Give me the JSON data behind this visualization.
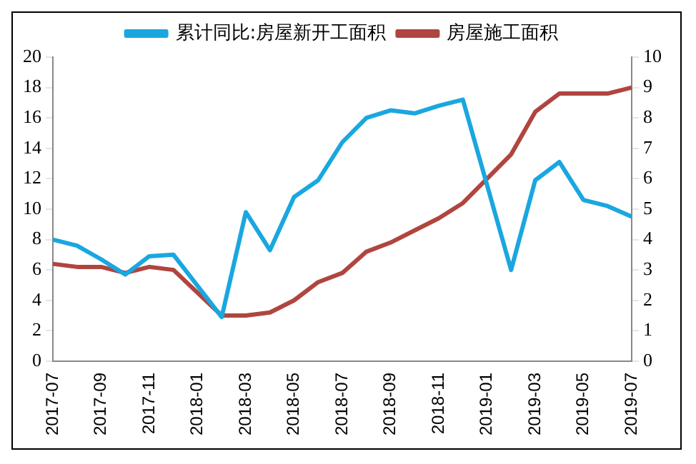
{
  "chart_data": {
    "type": "line",
    "categories": [
      "2017-07",
      null,
      "2017-09",
      null,
      "2017-11",
      null,
      "2018-01",
      null,
      "2018-03",
      null,
      "2018-05",
      null,
      "2018-07",
      null,
      "2018-09",
      null,
      "2018-11",
      null,
      "2019-01",
      null,
      "2019-03",
      null,
      "2019-05",
      null,
      "2019-07"
    ],
    "series": [
      {
        "name": "累计同比:房屋新开工面积",
        "color": "#1aa7e0",
        "values": [
          8.0,
          7.6,
          6.7,
          5.7,
          6.9,
          7.0,
          null,
          2.9,
          9.8,
          7.3,
          10.8,
          11.9,
          14.4,
          16.0,
          16.5,
          16.3,
          16.8,
          17.2,
          null,
          6.0,
          11.9,
          13.1,
          10.6,
          10.2,
          9.5
        ]
      },
      {
        "name": "房屋施工面积",
        "color": "#b0453f",
        "axis": "y2",
        "values": [
          3.2,
          3.1,
          3.1,
          2.9,
          3.1,
          3.0,
          null,
          1.5,
          1.5,
          1.6,
          2.0,
          2.6,
          2.9,
          3.6,
          3.9,
          4.3,
          4.7,
          5.2,
          null,
          6.8,
          8.2,
          8.8,
          8.8,
          8.8,
          9.0
        ]
      }
    ],
    "ylim": [
      0,
      20
    ],
    "yticks": [
      0,
      2,
      4,
      6,
      8,
      10,
      12,
      14,
      16,
      18,
      20
    ],
    "y2lim": [
      0,
      10
    ],
    "y2ticks": [
      0,
      1,
      2,
      3,
      4,
      5,
      6,
      7,
      8,
      9,
      10
    ],
    "grid": false,
    "legend": "top",
    "marker": "none",
    "line_style": "solid"
  }
}
